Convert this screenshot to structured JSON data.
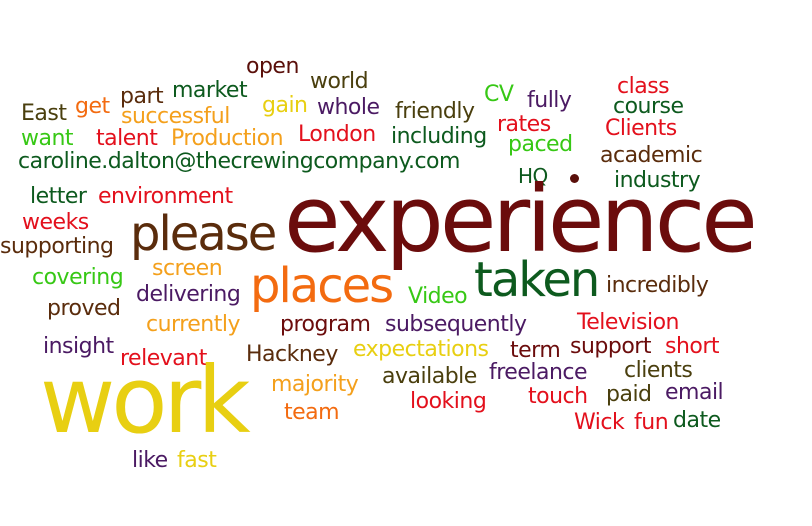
{
  "palette": {
    "maroon": "#6b0c0c",
    "red": "#e3101c",
    "orange": "#f36b10",
    "amber": "#f4a01c",
    "yellow": "#e8cf12",
    "green": "#37c815",
    "darkgreen": "#0d5a1e",
    "olive": "#4a3f0e",
    "brown": "#5a2c0c",
    "purple": "#4b1a63",
    "darkred": "#5a0f0a"
  },
  "words": [
    {
      "id": "open",
      "text": "open",
      "color": "darkred"
    },
    {
      "id": "world",
      "text": "world",
      "color": "olive"
    },
    {
      "id": "class",
      "text": "class",
      "color": "red"
    },
    {
      "id": "market",
      "text": "market",
      "color": "darkgreen"
    },
    {
      "id": "part",
      "text": "part",
      "color": "brown"
    },
    {
      "id": "cv",
      "text": "CV",
      "color": "green"
    },
    {
      "id": "fully",
      "text": "fully",
      "color": "purple"
    },
    {
      "id": "course",
      "text": "course",
      "color": "darkgreen"
    },
    {
      "id": "get",
      "text": "get",
      "color": "orange"
    },
    {
      "id": "successful",
      "text": "successful",
      "color": "amber"
    },
    {
      "id": "gain",
      "text": "gain",
      "color": "yellow"
    },
    {
      "id": "whole",
      "text": "whole",
      "color": "purple"
    },
    {
      "id": "friendly",
      "text": "friendly",
      "color": "olive"
    },
    {
      "id": "east",
      "text": "East",
      "color": "olive"
    },
    {
      "id": "rates",
      "text": "rates",
      "color": "red"
    },
    {
      "id": "clients-cap",
      "text": "Clients",
      "color": "red"
    },
    {
      "id": "want",
      "text": "want",
      "color": "green"
    },
    {
      "id": "talent",
      "text": "talent",
      "color": "red"
    },
    {
      "id": "production",
      "text": "Production",
      "color": "amber"
    },
    {
      "id": "london",
      "text": "London",
      "color": "red"
    },
    {
      "id": "including",
      "text": "including",
      "color": "darkgreen"
    },
    {
      "id": "paced",
      "text": "paced",
      "color": "green"
    },
    {
      "id": "academic",
      "text": "academic",
      "color": "brown"
    },
    {
      "id": "email-address",
      "text": "caroline.dalton@thecrewingcompany.com",
      "color": "darkgreen"
    },
    {
      "id": "hq",
      "text": "HQ",
      "color": "darkgreen"
    },
    {
      "id": "industry",
      "text": "industry",
      "color": "darkgreen"
    },
    {
      "id": "letter",
      "text": "letter",
      "color": "darkgreen"
    },
    {
      "id": "environment",
      "text": "environment",
      "color": "red"
    },
    {
      "id": "experience",
      "text": "experience",
      "color": "maroon"
    },
    {
      "id": "weeks",
      "text": "weeks",
      "color": "red"
    },
    {
      "id": "please",
      "text": "please",
      "color": "brown"
    },
    {
      "id": "supporting",
      "text": "supporting",
      "color": "brown"
    },
    {
      "id": "screen",
      "text": "screen",
      "color": "amber"
    },
    {
      "id": "covering",
      "text": "covering",
      "color": "green"
    },
    {
      "id": "places",
      "text": "places",
      "color": "orange"
    },
    {
      "id": "taken",
      "text": "taken",
      "color": "darkgreen"
    },
    {
      "id": "incredibly",
      "text": "incredibly",
      "color": "brown"
    },
    {
      "id": "delivering",
      "text": "delivering",
      "color": "purple"
    },
    {
      "id": "video",
      "text": "Video",
      "color": "green"
    },
    {
      "id": "proved",
      "text": "proved",
      "color": "brown"
    },
    {
      "id": "currently",
      "text": "currently",
      "color": "amber"
    },
    {
      "id": "program",
      "text": "program",
      "color": "maroon"
    },
    {
      "id": "subsequently",
      "text": "subsequently",
      "color": "purple"
    },
    {
      "id": "television",
      "text": "Television",
      "color": "red"
    },
    {
      "id": "insight",
      "text": "insight",
      "color": "purple"
    },
    {
      "id": "relevant",
      "text": "relevant",
      "color": "red"
    },
    {
      "id": "hackney",
      "text": "Hackney",
      "color": "brown"
    },
    {
      "id": "expectations",
      "text": "expectations",
      "color": "yellow"
    },
    {
      "id": "term",
      "text": "term",
      "color": "maroon"
    },
    {
      "id": "support",
      "text": "support",
      "color": "maroon"
    },
    {
      "id": "short",
      "text": "short",
      "color": "red"
    },
    {
      "id": "work",
      "text": "work",
      "color": "yellow"
    },
    {
      "id": "majority",
      "text": "majority",
      "color": "amber"
    },
    {
      "id": "available",
      "text": "available",
      "color": "olive"
    },
    {
      "id": "freelance",
      "text": "freelance",
      "color": "purple"
    },
    {
      "id": "clients",
      "text": "clients",
      "color": "olive"
    },
    {
      "id": "paid",
      "text": "paid",
      "color": "olive"
    },
    {
      "id": "email",
      "text": "email",
      "color": "purple"
    },
    {
      "id": "team",
      "text": "team",
      "color": "orange"
    },
    {
      "id": "looking",
      "text": "looking",
      "color": "red"
    },
    {
      "id": "touch",
      "text": "touch",
      "color": "red"
    },
    {
      "id": "wick",
      "text": "Wick",
      "color": "red"
    },
    {
      "id": "fun",
      "text": "fun",
      "color": "red"
    },
    {
      "id": "date",
      "text": "date",
      "color": "darkgreen"
    },
    {
      "id": "like",
      "text": "like",
      "color": "purple"
    },
    {
      "id": "fast",
      "text": "fast",
      "color": "yellow"
    }
  ]
}
